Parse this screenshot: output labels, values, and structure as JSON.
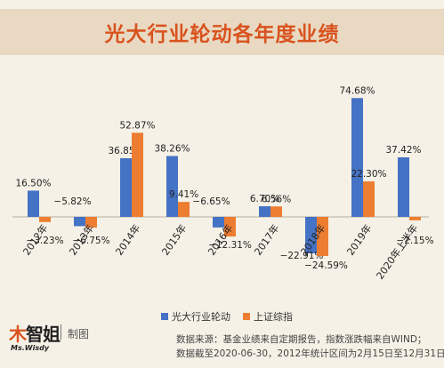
{
  "title": "光大行业轮动各年度业绩",
  "chart_data": {
    "type": "bar",
    "categories": [
      "2012年",
      "2013年",
      "2014年",
      "2015年",
      "2016年",
      "2017年",
      "2018年",
      "2019年",
      "2020年上半年"
    ],
    "series": [
      {
        "name": "光大行业轮动",
        "color": "#4472c4",
        "values": [
          16.5,
          -5.82,
          36.85,
          38.26,
          -6.65,
          6.7,
          -22.91,
          74.68,
          37.42
        ]
      },
      {
        "name": "上证综指",
        "color": "#ed7d31",
        "values": [
          -3.23,
          -6.75,
          52.87,
          9.41,
          -12.31,
          6.56,
          -24.59,
          22.3,
          -2.15
        ]
      }
    ],
    "labels": [
      [
        "16.50%",
        "−5.82%",
        "36.85%",
        "38.26%",
        "−6.65%",
        "6.70%",
        "−22.91%",
        "74.68%",
        "37.42%"
      ],
      [
        "−3.23%",
        "−6.75%",
        "52.87%",
        "9.41%",
        "−12.31%",
        "6.56%",
        "−24.59%",
        "22.30%",
        "−2.15%"
      ]
    ],
    "legend_position": "bottom",
    "grid": false
  },
  "footer": {
    "logo_text": "智姐",
    "logo_en": "Ms.Wisdy",
    "maker_label": "制图",
    "notes": [
      "数据来源：基金业绩来自定期报告，指数涨跌幅来自WIND；",
      "数据截至2020-06-30，2012年统计区间为2月15日至12月31日"
    ]
  }
}
